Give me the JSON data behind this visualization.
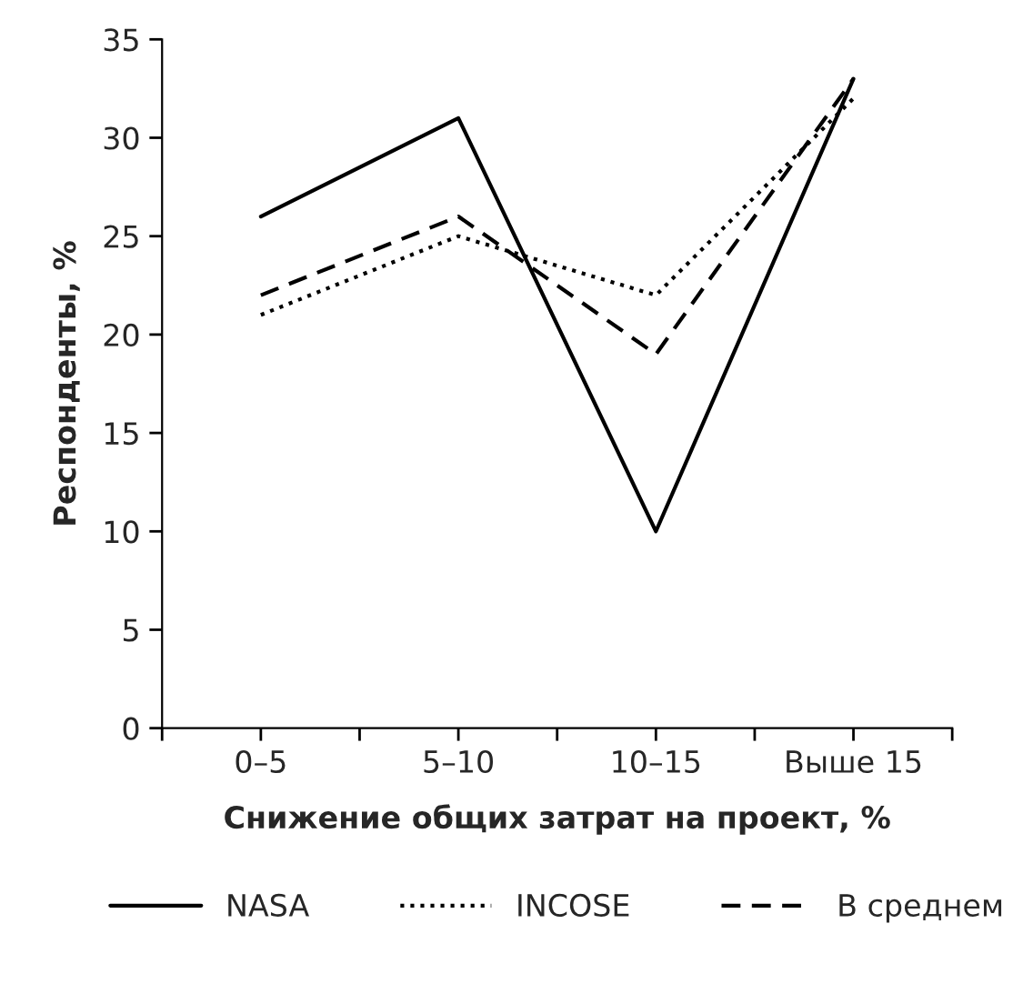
{
  "chart_data": {
    "type": "line",
    "xlabel": "Снижение общих затрат на проект, %",
    "ylabel": "Респонденты, %",
    "categories": [
      "0–5",
      "5–10",
      "10–15",
      "Выше 15"
    ],
    "series": [
      {
        "name": "NASA",
        "color": "#000000",
        "line_style": "solid",
        "values": [
          26,
          31,
          10,
          33
        ]
      },
      {
        "name": "INCOSE",
        "color": "#000000",
        "line_style": "dotted",
        "values": [
          21,
          25,
          22,
          32
        ]
      },
      {
        "name": "В среднем",
        "color": "#000000",
        "line_style": "dashed",
        "values": [
          22,
          26,
          19,
          33
        ]
      }
    ],
    "ylim": [
      0,
      35
    ],
    "yticks": [
      0,
      5,
      10,
      15,
      20,
      25,
      30,
      35
    ],
    "grid": false,
    "legend": "bottom",
    "marker": "none"
  }
}
